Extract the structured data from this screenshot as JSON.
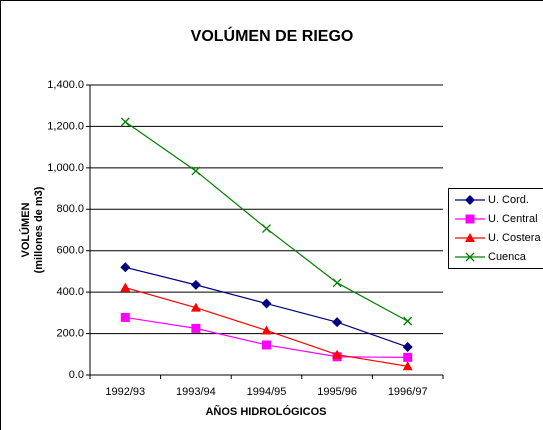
{
  "chart_data": {
    "type": "line",
    "title": "VOLÚMEN DE RIEGO",
    "x_label": "AÑOS HIDROLÓGICOS",
    "y_label": [
      "VOLÚMEN",
      "(millones de m3)"
    ],
    "categories": [
      "1992/93",
      "1993/94",
      "1994/95",
      "1995/96",
      "1996/97"
    ],
    "series": [
      {
        "name": "U. Cord.",
        "color": "#000080",
        "marker": "diamond",
        "values": [
          520,
          435,
          345,
          255,
          135
        ]
      },
      {
        "name": "U. Central",
        "color": "#ff00ff",
        "marker": "square",
        "values": [
          278,
          225,
          145,
          88,
          85
        ]
      },
      {
        "name": "U. Costera",
        "color": "#ff0000",
        "marker": "triangle",
        "values": [
          422,
          325,
          215,
          98,
          42
        ]
      },
      {
        "name": "Cuenca",
        "color": "#008000",
        "marker": "x",
        "values": [
          1222,
          985,
          707,
          445,
          260
        ]
      }
    ],
    "ylim": [
      0,
      1400
    ],
    "yticks": [
      {
        "value": 0,
        "label": "0.0"
      },
      {
        "value": 200,
        "label": "200.0"
      },
      {
        "value": 400,
        "label": "400.0"
      },
      {
        "value": 600,
        "label": "600.0"
      },
      {
        "value": 800,
        "label": "800.0"
      },
      {
        "value": 1000,
        "label": "1,000.0"
      },
      {
        "value": 1200,
        "label": "1,200.0"
      },
      {
        "value": 1400,
        "label": "1,400.0"
      }
    ],
    "grid": true,
    "legend": "right"
  }
}
